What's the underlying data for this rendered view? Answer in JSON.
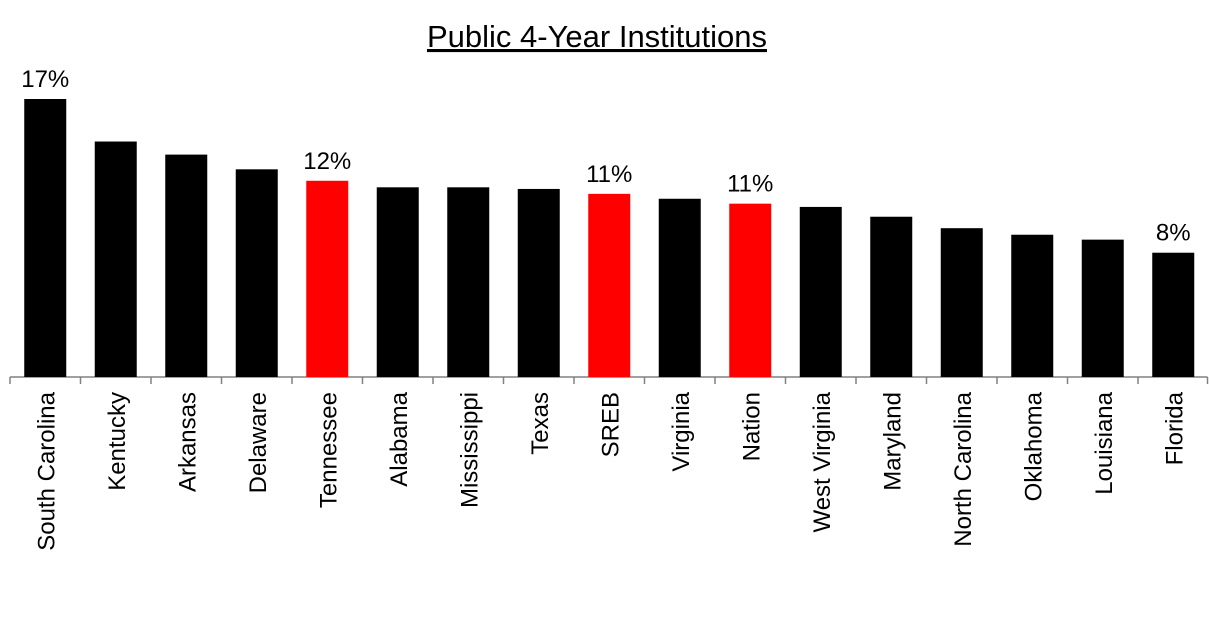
{
  "chart_data": {
    "type": "bar",
    "title": "Public 4-Year Institutions",
    "categories": [
      "South Carolina",
      "Kentucky",
      "Arkansas",
      "Delaware",
      "Tennessee",
      "Alabama",
      "Mississippi",
      "Texas",
      "SREB",
      "Virginia",
      "Nation",
      "West Virginia",
      "Maryland",
      "North Carolina",
      "Oklahoma",
      "Louisiana",
      "Florida"
    ],
    "values": [
      17,
      14.4,
      13.6,
      12.7,
      12,
      11.6,
      11.6,
      11.5,
      11.2,
      10.9,
      10.6,
      10.4,
      9.8,
      9.1,
      8.7,
      8.4,
      7.6
    ],
    "value_labels": [
      "17%",
      null,
      null,
      null,
      "12%",
      null,
      null,
      null,
      "11%",
      null,
      "11%",
      null,
      null,
      null,
      null,
      null,
      "8%"
    ],
    "colors": [
      "#000000",
      "#000000",
      "#000000",
      "#000000",
      "#ff0000",
      "#000000",
      "#000000",
      "#000000",
      "#ff0000",
      "#000000",
      "#ff0000",
      "#000000",
      "#000000",
      "#000000",
      "#000000",
      "#000000",
      "#000000"
    ],
    "ylim": [
      0,
      17
    ]
  }
}
